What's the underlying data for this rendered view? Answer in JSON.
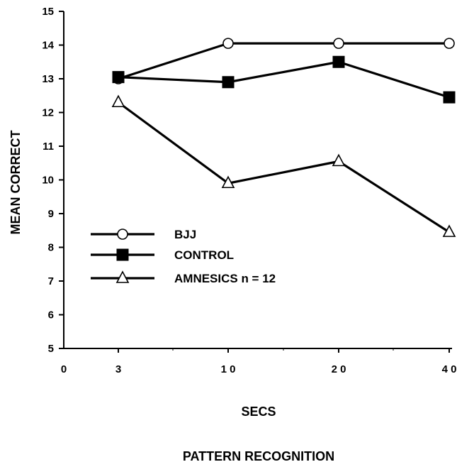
{
  "chart_data": {
    "type": "line",
    "title": "PATTERN RECOGNITION",
    "xlabel": "SECS",
    "ylabel": "MEAN CORRECT",
    "x_ticks": [
      "0",
      "3",
      "1 0",
      "2 0",
      "4 0"
    ],
    "y_ticks": [
      "5",
      "6",
      "7",
      "8",
      "9",
      "10",
      "11",
      "12",
      "13",
      "14",
      "15"
    ],
    "ylim": [
      5,
      15
    ],
    "grid": false,
    "legend_position": "lower-left",
    "categories": [
      "3",
      "10",
      "20",
      "40"
    ],
    "series": [
      {
        "name": "BJJ",
        "marker": "open-circle",
        "values": [
          13.0,
          14.05,
          14.05,
          14.05
        ]
      },
      {
        "name": "CONTROL",
        "marker": "filled-square",
        "values": [
          13.05,
          12.9,
          13.5,
          12.45
        ]
      },
      {
        "name": "AMNESICS n = 12",
        "marker": "open-triangle",
        "values": [
          12.3,
          9.9,
          10.55,
          8.45
        ]
      }
    ]
  }
}
